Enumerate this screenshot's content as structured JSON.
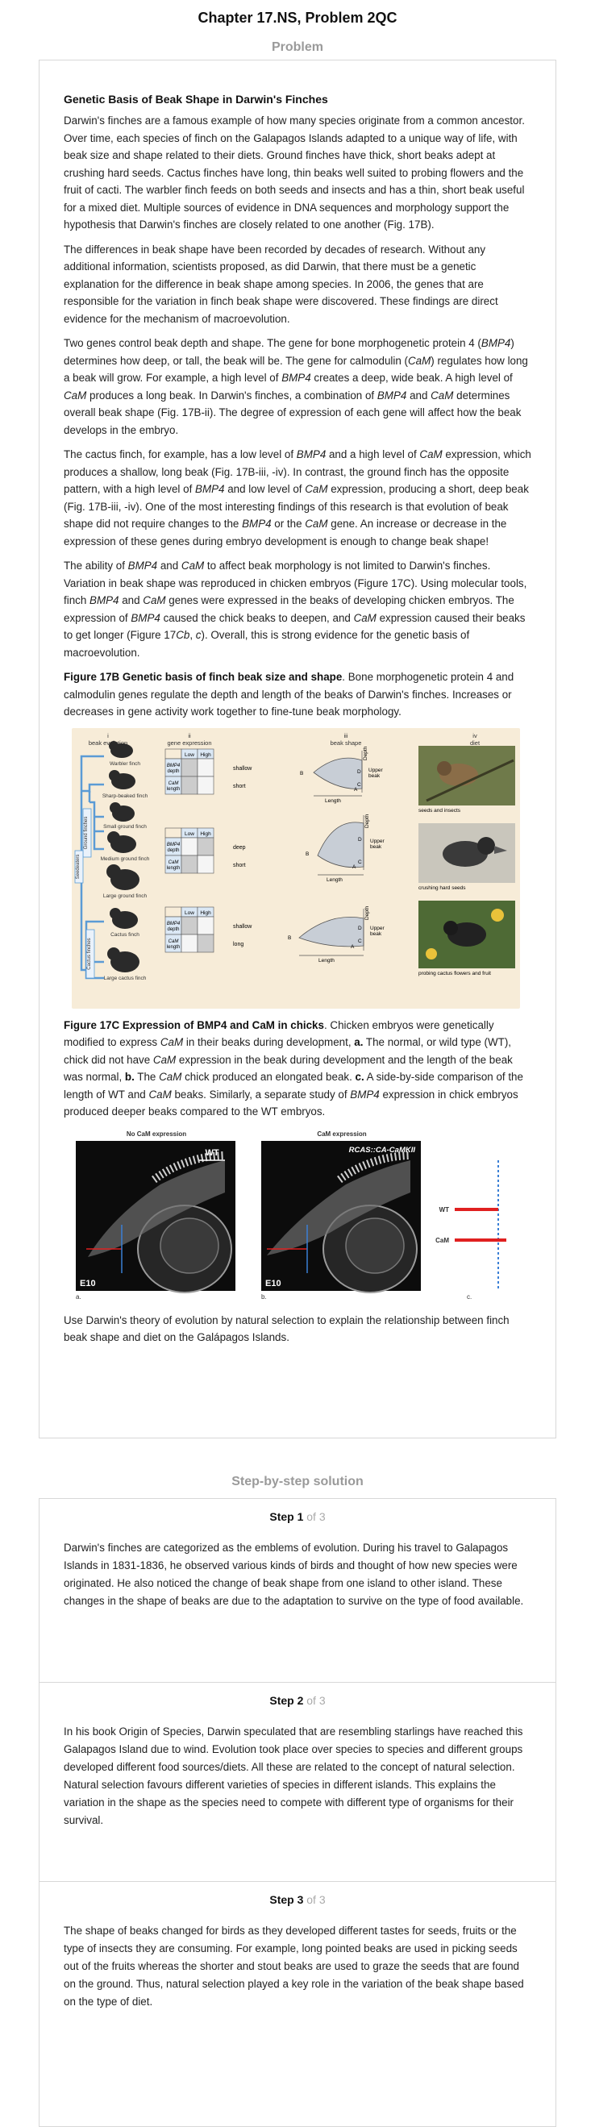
{
  "chapter_title": "Chapter 17.NS, Problem 2QC",
  "problem_heading": "Problem",
  "problem": {
    "title": "Genetic Basis of Beak Shape in Darwin's Finches",
    "p1": "Darwin's finches are a famous example of how many species originate from a common ancestor. Over time, each species of finch on the Galapagos Islands adapted to a unique way of life, with beak size and shape related to their diets. Ground finches have thick, short beaks adept at crushing hard seeds. Cactus finches have long, thin beaks well suited to probing flowers and the fruit of cacti. The warbler finch feeds on both seeds and insects and has a thin, short beak useful for a mixed diet. Multiple sources of evidence in DNA sequences and morphology support the hypothesis that Darwin's finches are closely related to one another (Fig. 17B).",
    "p2": "The differences in beak shape have been recorded by decades of research. Without any additional information, scientists proposed, as did Darwin, that there must be a genetic explanation for the difference in beak shape among species. In 2006, the genes that are responsible for the variation in finch beak shape were discovered. These findings are direct evidence for the mechanism of macroevolution.",
    "p3": {
      "a": "Two genes control beak depth and shape. The gene for bone morphogenetic protein 4 (",
      "b": "BMP4",
      "c": ") determines how deep, or tall, the beak will be. The gene for calmodulin (",
      "d": "CaM",
      "e": ") regulates how long a beak will grow. For example, a high level of ",
      "f": "BMP4",
      "g": " creates a deep, wide beak. A high level of ",
      "h": "CaM",
      "i": " produces a long beak. In Darwin's finches, a combination of ",
      "j": "BMP4",
      "k": " and ",
      "l": "CaM",
      "m": " determines overall beak shape (Fig. 17B-ii). The degree of expression of each gene will affect how the beak develops in the embryo."
    },
    "p4": {
      "a": "The cactus finch, for example, has a low level of ",
      "b": "BMP4",
      "c": " and a high level of ",
      "d": "CaM",
      "e": " expression, which produces a shallow, long beak (Fig. 17B-iii, -iv). In contrast, the ground finch has the opposite pattern, with a high level of ",
      "f": "BMP4",
      "g": " and low level of ",
      "h": "CaM",
      "i": " expression, producing a short, deep beak (Fig. 17B-iii, -iv). One of the most interesting findings of this research is that evolution of beak shape did not require changes to the ",
      "j": "BMP4",
      "k": " or the ",
      "l": "CaM",
      "m": " gene. An increase or decrease in the expression of these genes during embryo development is enough to change beak shape!"
    },
    "p5": {
      "a": "The ability of ",
      "b": "BMP4",
      "c": " and ",
      "d": "CaM",
      "e": " to affect beak morphology is not limited to Darwin's finches. Variation in beak shape was reproduced in chicken embryos (Figure 17C). Using molecular tools, finch ",
      "f": "BMP4",
      "g": " and ",
      "h": "CaM",
      "i": " genes were expressed in the beaks of developing chicken embryos. The expression of ",
      "j": "BMP4",
      "k": " caused the chick beaks to deepen, and ",
      "l": "CaM",
      "m": " expression caused their beaks to get longer (Figure 17",
      "n": "Cb",
      "o": ", ",
      "p": "c",
      "q": "). Overall, this is strong evidence for the genetic basis of macroevolution."
    },
    "fig17b_caption": {
      "bold": "Figure 17B Genetic basis of finch beak size and shape",
      "rest": ". Bone morphogenetic protein 4 and calmodulin genes regulate the depth and length of the beaks of Darwin's finches. Increases or decreases in gene activity work together to fine-tune beak morphology."
    },
    "fig17b": {
      "col_headers": [
        {
          "num": "i",
          "label": "beak evolution"
        },
        {
          "num": "ii",
          "label": "gene expression"
        },
        {
          "num": "iii",
          "label": "beak shape"
        },
        {
          "num": "iv",
          "label": "diet"
        }
      ],
      "finches": [
        "Warbler finch",
        "Sharp-beaked finch",
        "Small ground finch",
        "Medium ground finch",
        "Large ground finch",
        "Cactus finch",
        "Large cactus finch"
      ],
      "group_labels": [
        "Ground finches",
        "Cactus finches",
        "Seedeaters"
      ],
      "table_cols": [
        "Low",
        "High"
      ],
      "table_rows": [
        "BMP4",
        "depth",
        "CaM",
        "length"
      ],
      "rows": [
        {
          "shape1": "shallow",
          "shape2": "short",
          "diet": "seeds and insects"
        },
        {
          "shape1": "deep",
          "shape2": "short",
          "diet": "crushing hard seeds"
        },
        {
          "shape1": "shallow",
          "shape2": "long",
          "diet": "probing cactus flowers and fruit"
        }
      ],
      "beak_labels": {
        "depth": "Depth",
        "length": "Length",
        "upper": "Upper",
        "beak": "beak",
        "a": "A",
        "b": "B",
        "c": "C",
        "d": "D"
      }
    },
    "fig17c_caption": {
      "bold": "Figure 17C Expression of BMP4 and CaM in chicks",
      "a": ". Chicken embryos were genetically modified to express ",
      "b": "CaM",
      "c": " in their beaks during development, ",
      "d": "a.",
      "e": " The normal, or wild type (WT), chick did not have ",
      "f": "CaM",
      "g": " expression in the beak during development and the length of the beak was normal, ",
      "h": "b.",
      "i": " The ",
      "j": "CaM",
      "k": " chick produced an elongated beak. ",
      "l": "c.",
      "m": " A side-by-side comparison of the length of WT and ",
      "n": "CaM",
      "o": " beaks. Similarly, a separate study of ",
      "p": "BMP4",
      "q": " expression in chick embryos produced deeper beaks compared to the WT embryos."
    },
    "fig17c": {
      "panel_a_title": "No CaM expression",
      "panel_b_title": "CaM expression",
      "wt": "WT",
      "rcas": "RCAS::CA-CaMKII",
      "e10": "E10",
      "labels": [
        "a.",
        "b.",
        "c."
      ],
      "legend_wt": "WT",
      "legend_cam": "CaM",
      "colors": {
        "red": "#e02020",
        "blue": "#3a7fd5"
      }
    },
    "question": "Use Darwin's theory of evolution by natural selection to explain the relationship between finch beak shape and diet on the Galápagos Islands."
  },
  "solution_heading": "Step-by-step solution",
  "steps": [
    {
      "label": "Step 1",
      "of": "of 3",
      "text": "Darwin's finches are categorized as the emblems of evolution. During his travel to Galapagos Islands in 1831-1836, he observed various kinds of birds and thought of how new species were originated. He also noticed the change of beak shape from one island to other island. These changes in the shape of beaks are due to the adaptation to survive on the type of food available."
    },
    {
      "label": "Step 2",
      "of": "of 3",
      "text": "In his book Origin of Species, Darwin speculated that are resembling starlings have reached this Galapagos Island due to wind. Evolution took place over species to species and different groups developed different food sources/diets. All these are related to the concept of natural selection. Natural selection favours different varieties of species in different islands. This explains the variation in the shape as the species need to compete with different type of organisms for their survival."
    },
    {
      "label": "Step 3",
      "of": "of 3",
      "text": "The shape of beaks changed for birds as they developed different tastes for seeds, fruits or the type of insects they are consuming. For example, long pointed beaks are used in picking seeds out of the fruits whereas the shorter and stout beaks are used to graze the seeds that are found on the ground. Thus, natural selection played a key role in the variation of the beak shape based on the type of diet."
    }
  ]
}
